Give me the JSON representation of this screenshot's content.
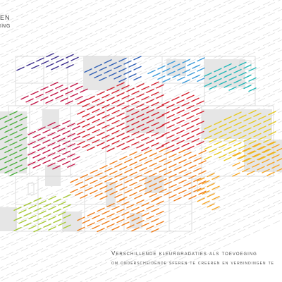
{
  "title": {
    "main": "EN",
    "sub": "ING"
  },
  "caption": {
    "line1": "Verschillende kleurgradaties als toevoeging",
    "line2": "om onderscheidende sferen te creeren en verbindingen te"
  },
  "colors": {
    "background": "#ffffff",
    "grey_dash": "#dcdcdc",
    "plan_line": "#d8d8d8",
    "plan_fill": "#e6e6e6",
    "text": "#4a4a4a",
    "purple": "#3b2c8c",
    "blue": "#2f5fb5",
    "light_blue": "#3b9ad9",
    "teal": "#23b7b7",
    "red": "#d4202f",
    "crimson": "#c4184a",
    "orange": "#ef7d1a",
    "light_orange": "#f5a524",
    "yellow": "#e6c91f",
    "lime": "#a6c934",
    "green": "#4caf3e"
  }
}
